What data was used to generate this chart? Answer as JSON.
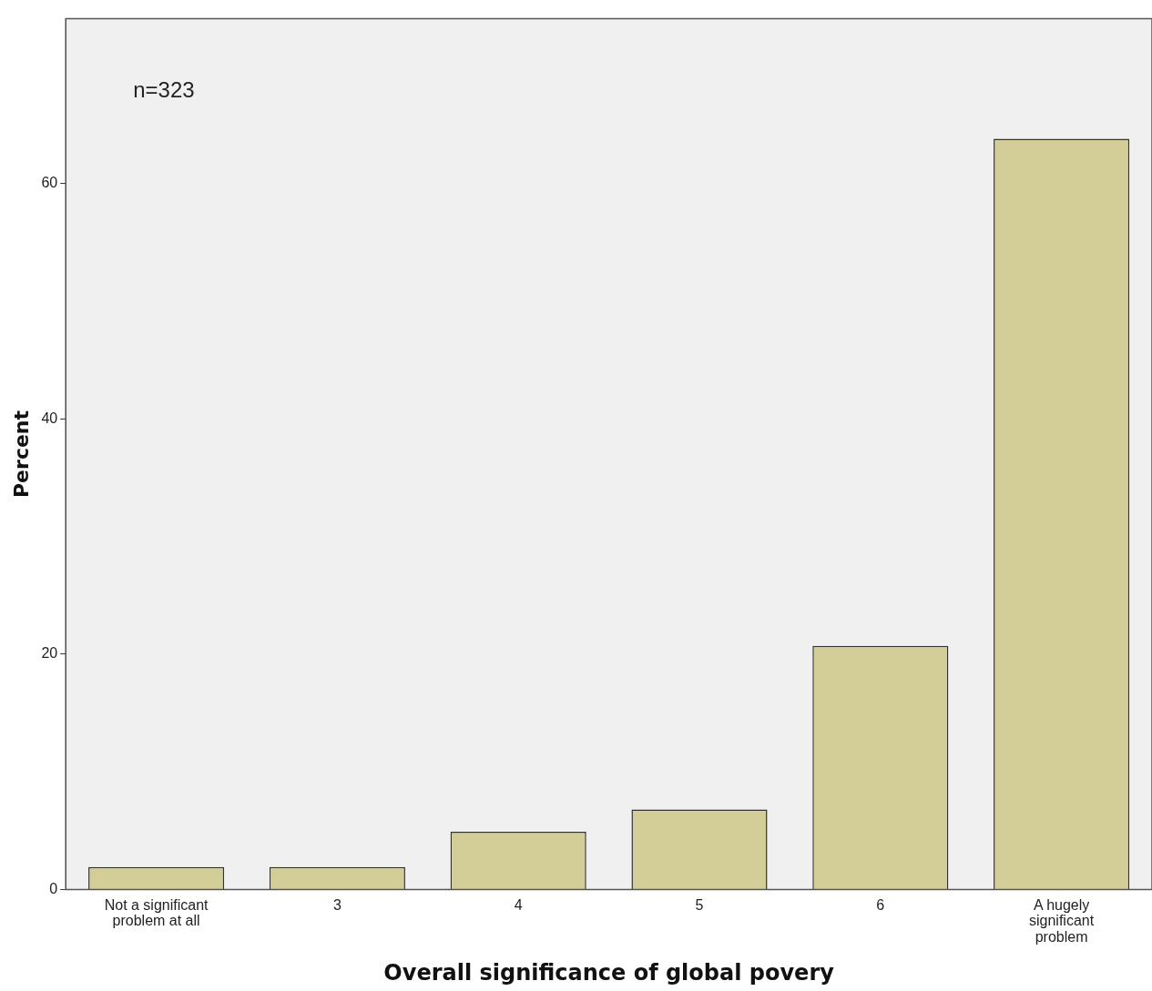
{
  "chart_data": {
    "type": "bar",
    "xlabel": "Overall significance of global povery",
    "ylabel": "Percent",
    "categories": [
      "Not a significant problem at all",
      "3",
      "4",
      "5",
      "6",
      "A hugely significant problem"
    ],
    "values": [
      1.9,
      1.9,
      4.9,
      6.8,
      20.7,
      63.8
    ],
    "color": "#d3ce97",
    "ylim": [
      0,
      74
    ],
    "yticks": [
      0,
      20,
      40,
      60
    ],
    "grid": false,
    "legend": false,
    "annotations": [
      "n=323"
    ]
  }
}
